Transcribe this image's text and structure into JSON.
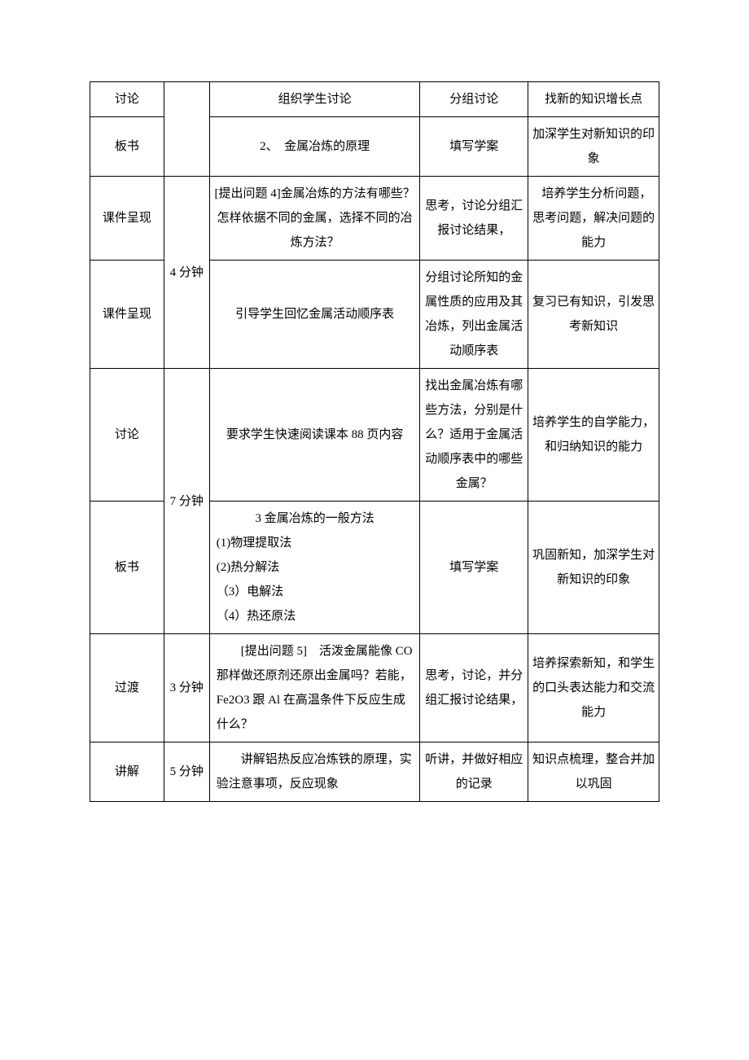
{
  "rows": [
    {
      "c1": "讨论",
      "c3": "组织学生讨论",
      "c4": "分组讨论",
      "c5": "找新的知识增长点"
    },
    {
      "c1": "板书",
      "c3": "2、　金属冶炼的原理",
      "c4": "填写学案",
      "c5": "加深学生对新知识的印象"
    },
    {
      "c1": "课件呈现",
      "c2": "4 分钟",
      "c3": "[提出问题 4]金属冶炼的方法有哪些？怎样依据不同的金属，选择不同的冶炼方法？",
      "c4": "思考，讨论分组汇报讨论结果，",
      "c5": "培养学生分析问题，　思考问题，解决问题的能力"
    },
    {
      "c1": "课件呈现",
      "c3": "引导学生回忆金属活动顺序表",
      "c4": "分组讨论所知的金属性质的应用及其冶炼，列出金属活动顺序表",
      "c5": "复习已有知识，引发思考新知识"
    },
    {
      "c1": "讨论",
      "c2": "7 分钟",
      "c3": "要求学生快速阅读课本 88 页内容",
      "c4": "找出金属冶炼有哪些方法，分别是什么？适用于金属活动顺序表中的哪些金属？",
      "c5": "培养学生的自学能力，和归纳知识的能力"
    },
    {
      "c1": "板书",
      "c3_lines": [
        "3 金属冶炼的一般方法",
        "(1)物理提取法",
        "(2)热分解法",
        "（3）电解法",
        "（4）热还原法"
      ],
      "c4": "填写学案",
      "c5": "巩固新知，加深学生对新知识的印象"
    },
    {
      "c1": "过渡",
      "c2": "3 分钟",
      "c3": "　　[提出问题 5]　活泼金属能像 CO 那样做还原剂还原出金属吗？若能，　Fe2O3 跟 Al 在高温条件下反应生成什么？",
      "c4": "思考，讨论，并分组汇报讨论结果，",
      "c5": "培养探索新知，和学生的口头表达能力和交流能力"
    },
    {
      "c1": "讲解",
      "c2": "5 分钟",
      "c3": "　　讲解铝热反应冶炼铁的原理，实验注意事项，反应现象",
      "c4": "听讲，并做好相应的记录",
      "c5": "知识点梳理，整合并加以巩固"
    }
  ]
}
